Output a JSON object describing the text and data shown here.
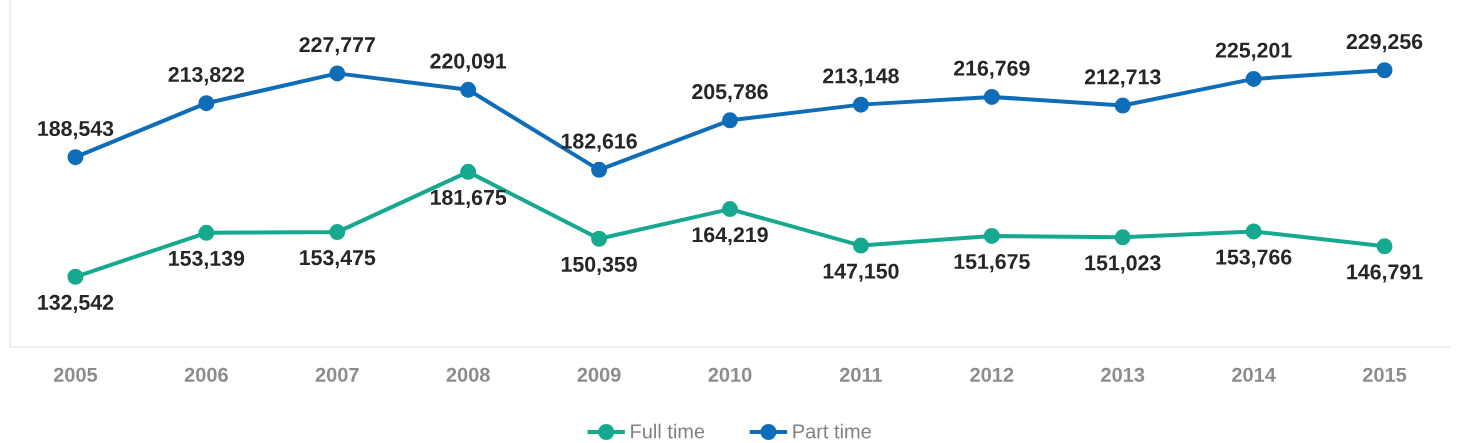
{
  "chart_data": {
    "type": "line",
    "categories": [
      "2005",
      "2006",
      "2007",
      "2008",
      "2009",
      "2010",
      "2011",
      "2012",
      "2013",
      "2014",
      "2015"
    ],
    "series": [
      {
        "name": "Full time",
        "color": "#17a98f",
        "values": [
          132542,
          153139,
          153475,
          181675,
          150359,
          164219,
          147150,
          151675,
          151023,
          153766,
          146791
        ],
        "value_labels": [
          "132,542",
          "153,139",
          "153,475",
          "181,675",
          "150,359",
          "164,219",
          "147,150",
          "151,675",
          "151,023",
          "153,766",
          "146,791"
        ]
      },
      {
        "name": "Part time",
        "color": "#0f6db8",
        "values": [
          188543,
          213822,
          227777,
          220091,
          182616,
          205786,
          213148,
          216769,
          212713,
          225201,
          229256
        ],
        "value_labels": [
          "188,543",
          "213,822",
          "227,777",
          "220,091",
          "182,616",
          "205,786",
          "213,148",
          "216,769",
          "212,713",
          "225,201",
          "229,256"
        ]
      }
    ],
    "legend": "bottom",
    "marker": "circle",
    "line_style": "solid"
  }
}
